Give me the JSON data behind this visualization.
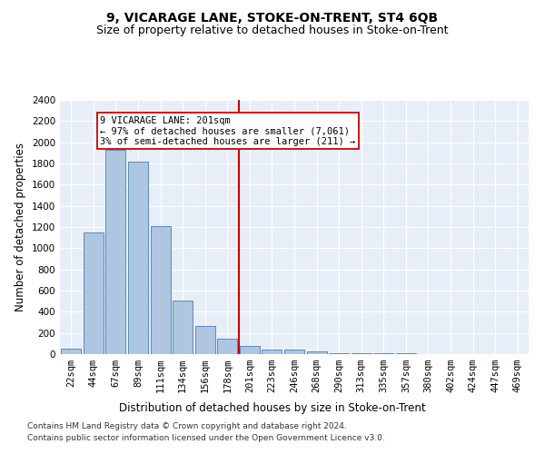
{
  "title": "9, VICARAGE LANE, STOKE-ON-TRENT, ST4 6QB",
  "subtitle": "Size of property relative to detached houses in Stoke-on-Trent",
  "xlabel": "Distribution of detached houses by size in Stoke-on-Trent",
  "ylabel": "Number of detached properties",
  "footnote1": "Contains HM Land Registry data © Crown copyright and database right 2024.",
  "footnote2": "Contains public sector information licensed under the Open Government Licence v3.0.",
  "annotation_title": "9 VICARAGE LANE: 201sqm",
  "annotation_line1": "← 97% of detached houses are smaller (7,061)",
  "annotation_line2": "3% of semi-detached houses are larger (211) →",
  "bar_labels": [
    "22sqm",
    "44sqm",
    "67sqm",
    "89sqm",
    "111sqm",
    "134sqm",
    "156sqm",
    "178sqm",
    "201sqm",
    "223sqm",
    "246sqm",
    "268sqm",
    "290sqm",
    "313sqm",
    "335sqm",
    "357sqm",
    "380sqm",
    "402sqm",
    "424sqm",
    "447sqm",
    "469sqm"
  ],
  "bar_values": [
    50,
    1150,
    1930,
    1820,
    1210,
    510,
    265,
    150,
    80,
    45,
    40,
    25,
    10,
    10,
    5,
    5,
    3,
    3,
    3,
    3,
    3
  ],
  "bar_color": "#aec6e0",
  "bar_edge_color": "#5a8abf",
  "vline_color": "#cc0000",
  "ylim": [
    0,
    2400
  ],
  "yticks": [
    0,
    200,
    400,
    600,
    800,
    1000,
    1200,
    1400,
    1600,
    1800,
    2000,
    2200,
    2400
  ],
  "background_color": "#e8eef8",
  "grid_color": "#ffffff",
  "title_fontsize": 10,
  "subtitle_fontsize": 9,
  "axis_label_fontsize": 8.5,
  "tick_fontsize": 7.5,
  "annotation_fontsize": 7.5,
  "footnote_fontsize": 6.5
}
